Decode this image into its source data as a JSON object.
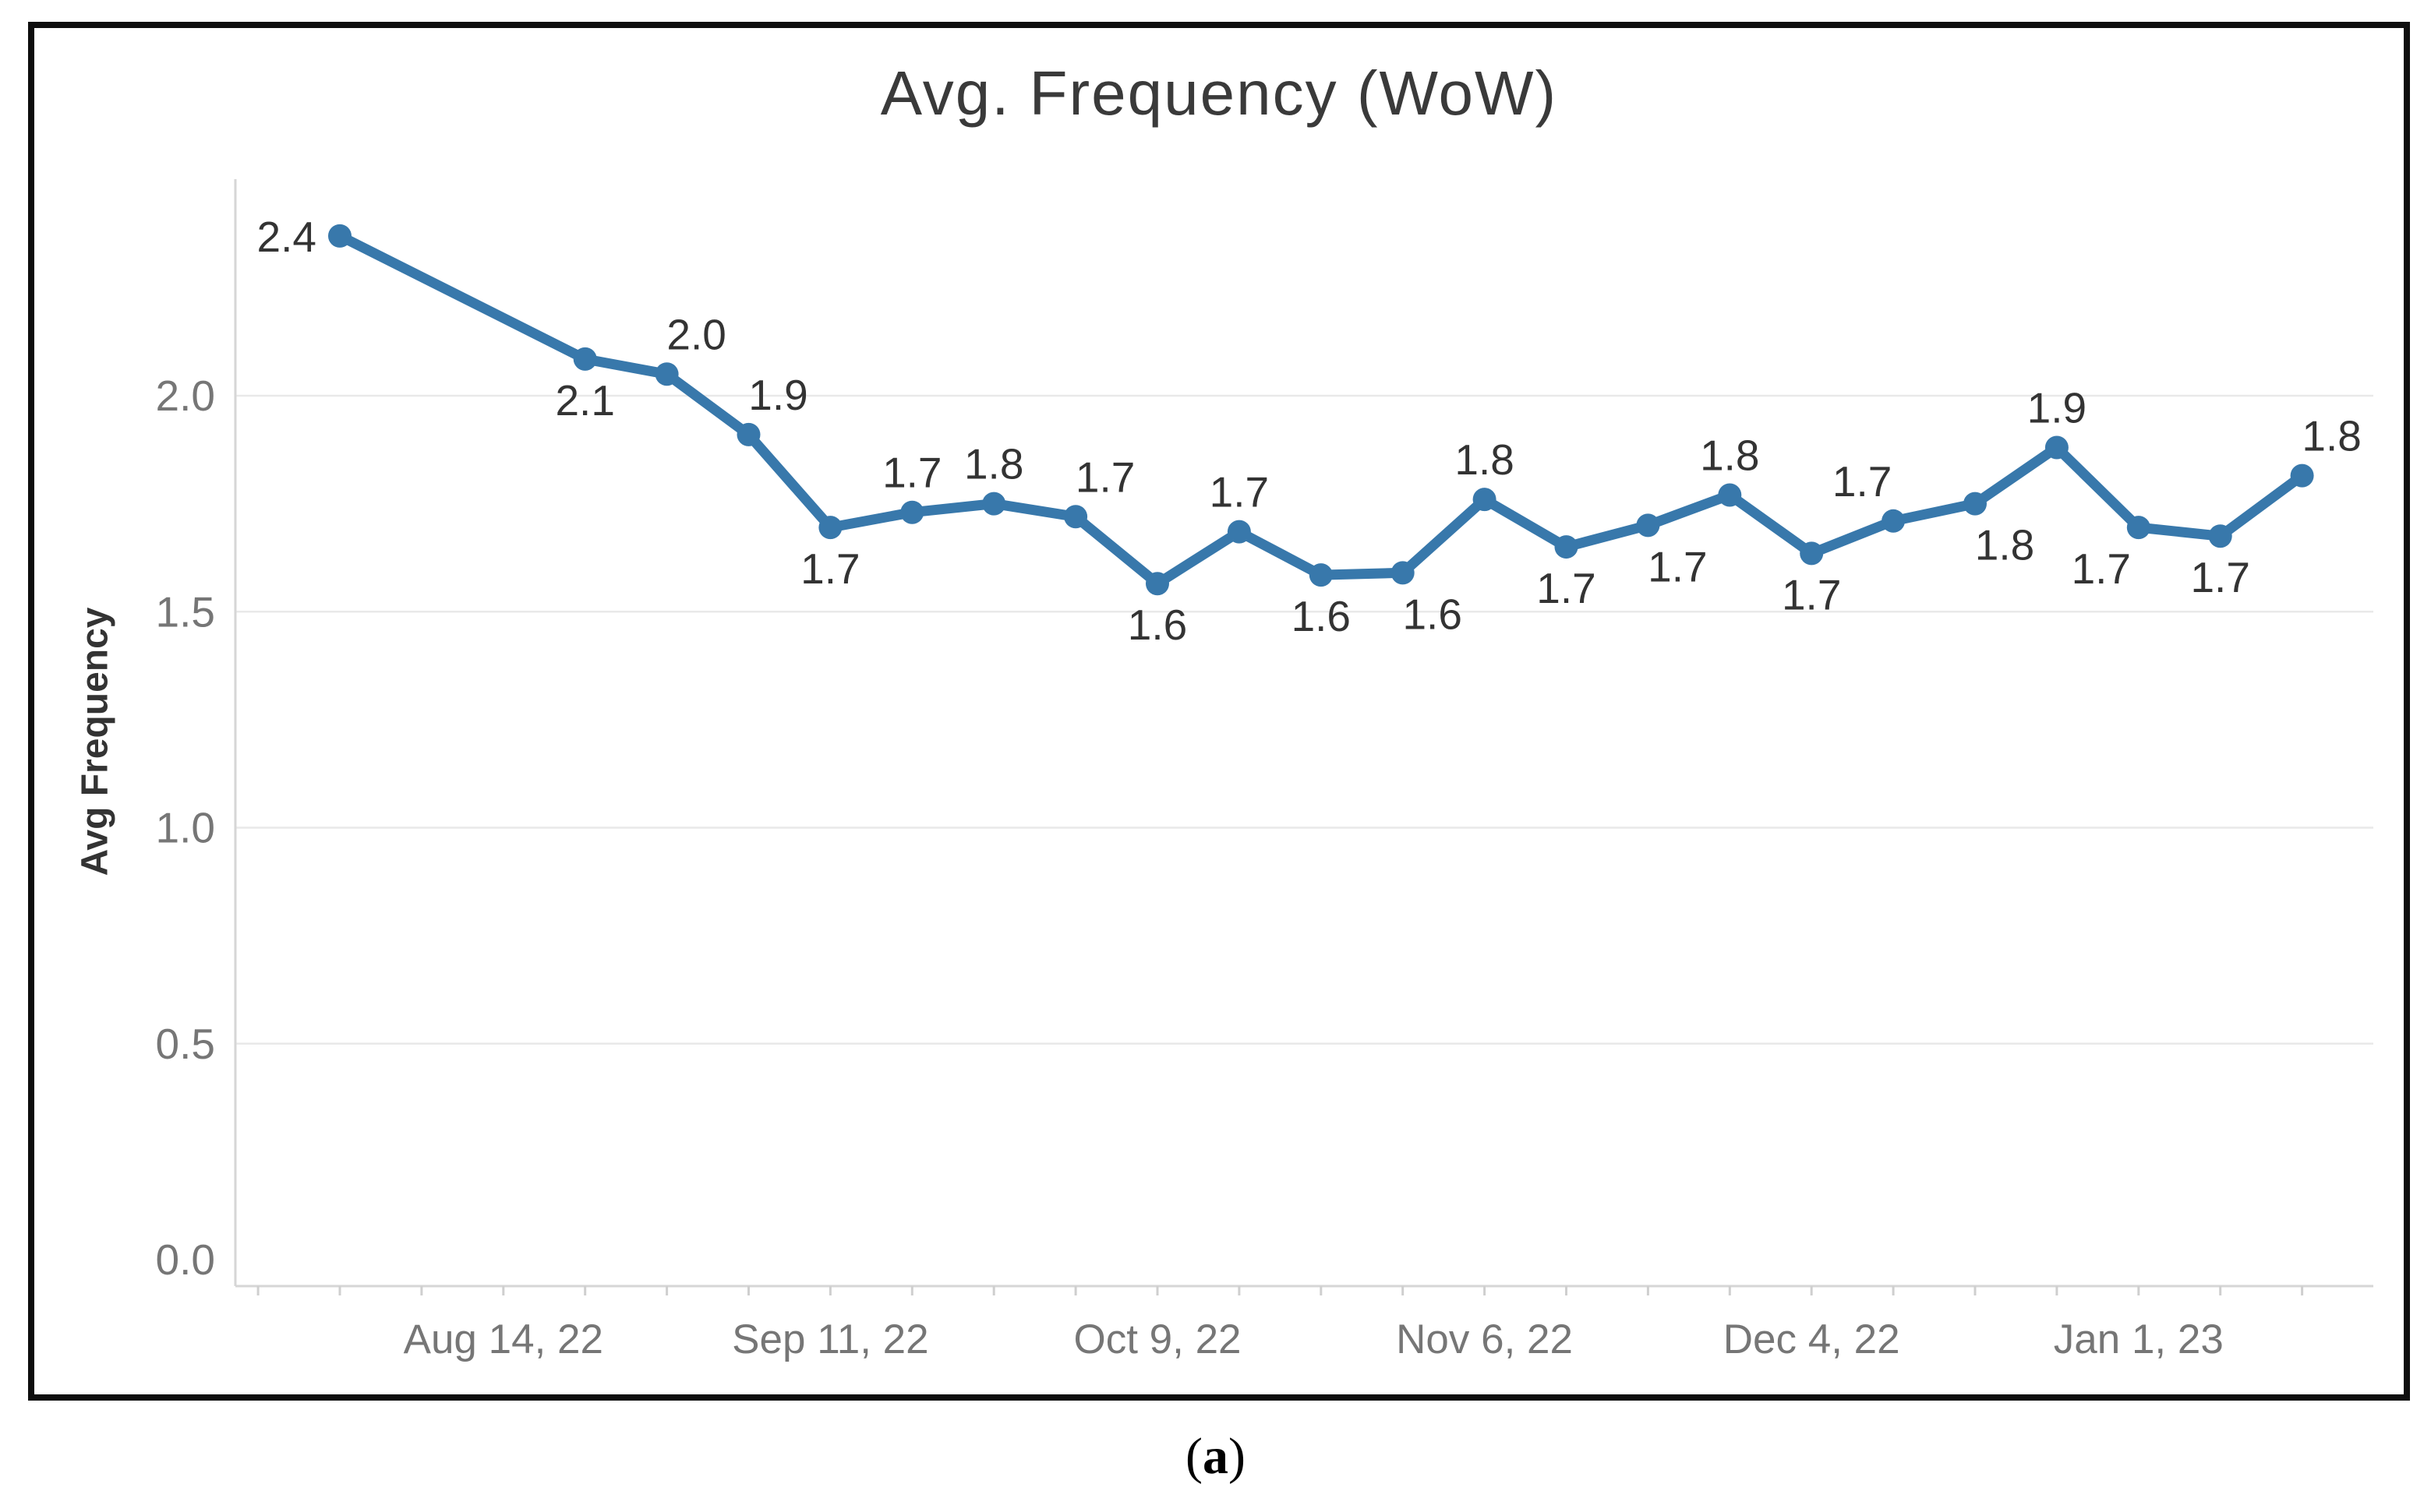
{
  "header": {
    "title": "Avg. Frequency (WoW)"
  },
  "caption": {
    "open": "(",
    "letter": "a",
    "close": ")"
  },
  "colors": {
    "line": "#3878ab",
    "marker": "#3878ab",
    "gridline": "#e9e9e9",
    "axis_line": "#d6d6d6",
    "tick_mark": "#cfcfcf",
    "tick_text": "#767676",
    "data_label_text": "#333333",
    "title_text": "#3a3a3a",
    "frame_border": "#0e0e0e",
    "background": "#ffffff"
  },
  "chart_data": {
    "type": "line",
    "title": "Avg. Frequency (WoW)",
    "xlabel": "",
    "ylabel": "Avg Frequency",
    "series_name": "Avg Frequency",
    "legend": "none",
    "grid": "horizontal",
    "ylim": [
      0,
      2.5
    ],
    "y_ticks": [
      {
        "label": "0.0",
        "value": 0.0,
        "gridline": false
      },
      {
        "label": "0.5",
        "value": 0.5,
        "gridline": true
      },
      {
        "label": "1.0",
        "value": 1.0,
        "gridline": true
      },
      {
        "label": "1.5",
        "value": 1.5,
        "gridline": true
      },
      {
        "label": "2.0",
        "value": 2.0,
        "gridline": true
      }
    ],
    "x_ticks": [
      {
        "label": "Aug 14, 22",
        "week": 2
      },
      {
        "label": "Sep 11, 22",
        "week": 6
      },
      {
        "label": "Oct 9, 22",
        "week": 10
      },
      {
        "label": "Nov 6, 22",
        "week": 14
      },
      {
        "label": "Dec 4, 22",
        "week": 18
      },
      {
        "label": "Jan 1, 23",
        "week": 22
      }
    ],
    "minor_tick_weeks": [
      -1,
      0,
      1,
      2,
      3,
      4,
      5,
      6,
      7,
      8,
      9,
      10,
      11,
      12,
      13,
      14,
      15,
      16,
      17,
      18,
      19,
      20,
      21,
      22,
      23,
      24
    ],
    "points": [
      {
        "week": 0,
        "label": "2.4",
        "value": 2.4,
        "y_est": 2.37,
        "label_pos": "left"
      },
      {
        "week": 3,
        "label": "2.1",
        "value": 2.1,
        "y_est": 2.085,
        "label_pos": "below"
      },
      {
        "week": 4,
        "label": "2.0",
        "value": 2.0,
        "y_est": 2.05,
        "label_pos": "above-right"
      },
      {
        "week": 5,
        "label": "1.9",
        "value": 1.9,
        "y_est": 1.91,
        "label_pos": "above-right"
      },
      {
        "week": 6,
        "label": "1.7",
        "value": 1.7,
        "y_est": 1.695,
        "label_pos": "below"
      },
      {
        "week": 7,
        "label": "1.7",
        "value": 1.7,
        "y_est": 1.73,
        "label_pos": "above"
      },
      {
        "week": 8,
        "label": "1.8",
        "value": 1.8,
        "y_est": 1.75,
        "label_pos": "above"
      },
      {
        "week": 9,
        "label": "1.7",
        "value": 1.7,
        "y_est": 1.72,
        "label_pos": "above-right"
      },
      {
        "week": 10,
        "label": "1.6",
        "value": 1.6,
        "y_est": 1.565,
        "label_pos": "below"
      },
      {
        "week": 11,
        "label": "1.7",
        "value": 1.7,
        "y_est": 1.685,
        "label_pos": "above"
      },
      {
        "week": 12,
        "label": "1.6",
        "value": 1.6,
        "y_est": 1.585,
        "label_pos": "below"
      },
      {
        "week": 13,
        "label": "1.6",
        "value": 1.6,
        "y_est": 1.59,
        "label_pos": "below-right"
      },
      {
        "week": 14,
        "label": "1.8",
        "value": 1.8,
        "y_est": 1.76,
        "label_pos": "above"
      },
      {
        "week": 15,
        "label": "1.7",
        "value": 1.7,
        "y_est": 1.65,
        "label_pos": "below"
      },
      {
        "week": 16,
        "label": "1.7",
        "value": 1.7,
        "y_est": 1.7,
        "label_pos": "below-right"
      },
      {
        "week": 17,
        "label": "1.8",
        "value": 1.8,
        "y_est": 1.77,
        "label_pos": "above"
      },
      {
        "week": 18,
        "label": "1.7",
        "value": 1.7,
        "y_est": 1.635,
        "label_pos": "below"
      },
      {
        "week": 19,
        "label": "1.7",
        "value": 1.7,
        "y_est": 1.71,
        "label_pos": "above-left"
      },
      {
        "week": 20,
        "label": "1.8",
        "value": 1.8,
        "y_est": 1.75,
        "label_pos": "below-right"
      },
      {
        "week": 21,
        "label": "1.9",
        "value": 1.9,
        "y_est": 1.88,
        "label_pos": "above"
      },
      {
        "week": 22,
        "label": "1.7",
        "value": 1.7,
        "y_est": 1.695,
        "label_pos": "below-left"
      },
      {
        "week": 23,
        "label": "1.7",
        "value": 1.7,
        "y_est": 1.675,
        "label_pos": "below"
      },
      {
        "week": 24,
        "label": "1.8",
        "value": 1.8,
        "y_est": 1.815,
        "label_pos": "above-right"
      }
    ]
  }
}
